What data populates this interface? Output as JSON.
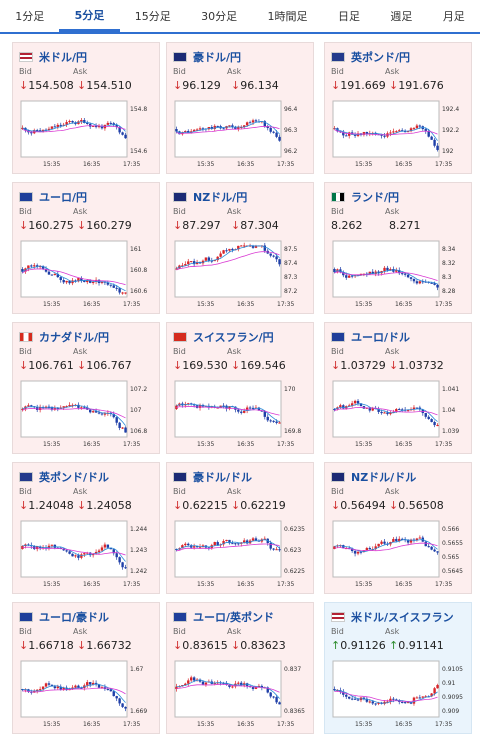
{
  "tabs": [
    {
      "label": "1分足"
    },
    {
      "label": "5分足"
    },
    {
      "label": "15分足"
    },
    {
      "label": "30分足"
    },
    {
      "label": "1時間足"
    },
    {
      "label": "日足"
    },
    {
      "label": "週足"
    },
    {
      "label": "月足"
    }
  ],
  "active_tab": "5分足",
  "labels": {
    "bid": "Bid",
    "ask": "Ask"
  },
  "pairs": [
    {
      "name": "米ドル/円",
      "flag": "us",
      "bid": "154.508",
      "ask": "154.510",
      "dir": "down",
      "ticks": [
        "154.8",
        "154.6"
      ],
      "times": [
        "15:35",
        "16:35",
        "17:35"
      ]
    },
    {
      "name": "豪ドル/円",
      "flag": "au",
      "bid": "96.129",
      "ask": "96.134",
      "dir": "down",
      "ticks": [
        "96.4",
        "96.3",
        "96.2"
      ],
      "times": [
        "15:35",
        "16:35",
        "17:35"
      ]
    },
    {
      "name": "英ポンド/円",
      "flag": "gb",
      "bid": "191.669",
      "ask": "191.676",
      "dir": "down",
      "ticks": [
        "192.4",
        "192.2",
        "192"
      ],
      "times": [
        "15:35",
        "16:35",
        "17:35"
      ]
    },
    {
      "name": "ユーロ/円",
      "flag": "eu",
      "bid": "160.275",
      "ask": "160.279",
      "dir": "down",
      "ticks": [
        "161",
        "160.8",
        "160.6"
      ],
      "times": [
        "15:35",
        "16:35",
        "17:35"
      ]
    },
    {
      "name": "NZドル/円",
      "flag": "nz",
      "bid": "87.297",
      "ask": "87.304",
      "dir": "down",
      "ticks": [
        "87.5",
        "87.4",
        "87.3",
        "87.2"
      ],
      "times": [
        "15:35",
        "16:35",
        "17:35"
      ]
    },
    {
      "name": "ランド/円",
      "flag": "za",
      "bid": "8.262",
      "ask": "8.271",
      "dir": "none",
      "ticks": [
        "8.34",
        "8.32",
        "8.3",
        "8.28"
      ],
      "times": [
        "15:35",
        "16:35",
        "17:35"
      ]
    },
    {
      "name": "カナダドル/円",
      "flag": "ca",
      "bid": "106.761",
      "ask": "106.767",
      "dir": "down",
      "ticks": [
        "107.2",
        "107",
        "106.8"
      ],
      "times": [
        "15:35",
        "16:35",
        "17:35"
      ]
    },
    {
      "name": "スイスフラン/円",
      "flag": "ch",
      "bid": "169.530",
      "ask": "169.546",
      "dir": "down",
      "ticks": [
        "170",
        "169.8"
      ],
      "times": [
        "15:35",
        "16:35",
        "17:35"
      ]
    },
    {
      "name": "ユーロ/ドル",
      "flag": "eu",
      "bid": "1.03729",
      "ask": "1.03732",
      "dir": "down",
      "ticks": [
        "1.041",
        "1.04",
        "1.039"
      ],
      "times": [
        "15:35",
        "16:35",
        "17:35"
      ]
    },
    {
      "name": "英ポンド/ドル",
      "flag": "gb",
      "bid": "1.24048",
      "ask": "1.24058",
      "dir": "down",
      "ticks": [
        "1.244",
        "1.243",
        "1.242"
      ],
      "times": [
        "15:35",
        "16:35",
        "17:35"
      ]
    },
    {
      "name": "豪ドル/ドル",
      "flag": "au",
      "bid": "0.62215",
      "ask": "0.62219",
      "dir": "down",
      "ticks": [
        "0.6235",
        "0.623",
        "0.6225"
      ],
      "times": [
        "15:35",
        "16:35",
        "17:35"
      ]
    },
    {
      "name": "NZドル/ドル",
      "flag": "nz",
      "bid": "0.56494",
      "ask": "0.56508",
      "dir": "down",
      "ticks": [
        "0.566",
        "0.5655",
        "0.565",
        "0.5645"
      ],
      "times": [
        "15:35",
        "16:35",
        "17:35"
      ]
    },
    {
      "name": "ユーロ/豪ドル",
      "flag": "eu",
      "bid": "1.66718",
      "ask": "1.66732",
      "dir": "down",
      "ticks": [
        "1.67",
        "1.669"
      ],
      "times": [
        "15:35",
        "16:35",
        "17:35"
      ]
    },
    {
      "name": "ユーロ/英ポンド",
      "flag": "eu",
      "bid": "0.83615",
      "ask": "0.83623",
      "dir": "down",
      "ticks": [
        "0.837",
        "0.8365"
      ],
      "times": [
        "15:35",
        "16:35",
        "17:35"
      ]
    },
    {
      "name": "米ドル/スイスフラン",
      "flag": "us",
      "bid": "0.91126",
      "ask": "0.91141",
      "dir": "up",
      "ticks": [
        "0.9105",
        "0.91",
        "0.9095",
        "0.909"
      ],
      "times": [
        "15:35",
        "16:35",
        "17:35"
      ]
    }
  ],
  "colors": {
    "up_candle": "#d9262a",
    "down_candle": "#1f3fa8",
    "ma1": "#2b8bd8",
    "ma2": "#d93bd3",
    "grid": "#d9d9d9"
  }
}
